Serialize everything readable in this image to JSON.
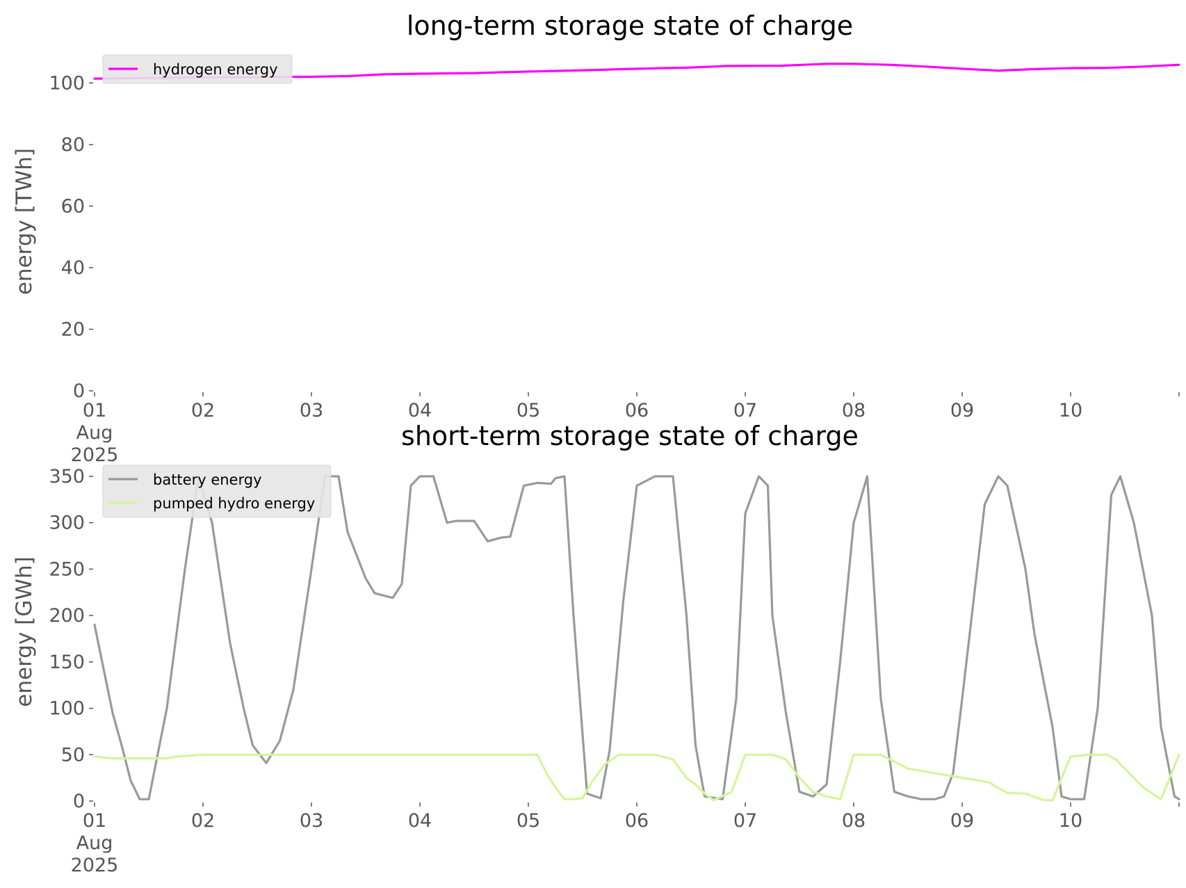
{
  "chart_data": [
    {
      "type": "line",
      "title": "long-term storage state of charge",
      "xlabel": "",
      "ylabel": "energy [TWh]",
      "xlim": [
        "2025-08-01",
        "2025-08-11"
      ],
      "ylim": [
        0,
        110
      ],
      "yticks": [
        0,
        20,
        40,
        60,
        80,
        100
      ],
      "xtick_labels": [
        "01\nAug\n2025",
        "02",
        "03",
        "04",
        "05",
        "06",
        "07",
        "08",
        "09",
        "10"
      ],
      "legend_position": "top-left",
      "grid": false,
      "series": [
        {
          "name": "hydrogen energy",
          "color": "#ff00ff",
          "x": [
            "2025-08-01T00:00",
            "2025-08-01T12:00",
            "2025-08-02T00:00",
            "2025-08-02T12:00",
            "2025-08-03T00:00",
            "2025-08-03T08:00",
            "2025-08-03T16:00",
            "2025-08-04T00:00",
            "2025-08-04T12:00",
            "2025-08-05T00:00",
            "2025-08-05T12:00",
            "2025-08-06T00:00",
            "2025-08-06T12:00",
            "2025-08-06T20:00",
            "2025-08-07T08:00",
            "2025-08-07T18:00",
            "2025-08-08T00:00",
            "2025-08-08T08:00",
            "2025-08-08T16:00",
            "2025-08-09T00:00",
            "2025-08-09T08:00",
            "2025-08-09T16:00",
            "2025-08-10T00:00",
            "2025-08-10T08:00",
            "2025-08-10T16:00",
            "2025-08-11T00:00"
          ],
          "values": [
            101.4,
            101.6,
            101.8,
            101.9,
            102.0,
            102.2,
            102.8,
            103.0,
            103.2,
            103.7,
            104.1,
            104.6,
            105.0,
            105.5,
            105.6,
            106.2,
            106.2,
            105.9,
            105.3,
            104.6,
            104.0,
            104.5,
            104.8,
            104.9,
            105.3,
            105.9
          ]
        }
      ]
    },
    {
      "type": "line",
      "title": "short-term storage state of charge",
      "xlabel": "",
      "ylabel": "energy [GWh]",
      "xlim": [
        "2025-08-01",
        "2025-08-11"
      ],
      "ylim": [
        0,
        365
      ],
      "yticks": [
        0,
        50,
        100,
        150,
        200,
        250,
        300,
        350
      ],
      "xtick_labels": [
        "01\nAug\n2025",
        "02",
        "03",
        "04",
        "05",
        "06",
        "07",
        "08",
        "09",
        "10"
      ],
      "legend_position": "top-left",
      "grid": false,
      "series": [
        {
          "name": "battery energy",
          "color": "#999999",
          "x": [
            "2025-08-01T00:00",
            "2025-08-01T04:00",
            "2025-08-01T06:00",
            "2025-08-01T08:00",
            "2025-08-01T10:00",
            "2025-08-01T12:00",
            "2025-08-01T16:00",
            "2025-08-01T20:00",
            "2025-08-01T23:00",
            "2025-08-02T02:00",
            "2025-08-02T06:00",
            "2025-08-02T09:00",
            "2025-08-02T11:00",
            "2025-08-02T14:00",
            "2025-08-02T17:00",
            "2025-08-02T20:00",
            "2025-08-03T00:00",
            "2025-08-03T03:00",
            "2025-08-03T06:00",
            "2025-08-03T08:00",
            "2025-08-03T12:00",
            "2025-08-03T14:00",
            "2025-08-03T18:00",
            "2025-08-03T20:00",
            "2025-08-03T22:00",
            "2025-08-04T00:00",
            "2025-08-04T03:00",
            "2025-08-04T06:00",
            "2025-08-04T08:00",
            "2025-08-04T12:00",
            "2025-08-04T15:00",
            "2025-08-04T18:00",
            "2025-08-04T20:00",
            "2025-08-04T23:00",
            "2025-08-05T02:00",
            "2025-08-05T05:00",
            "2025-08-05T06:00",
            "2025-08-05T08:00",
            "2025-08-05T10:00",
            "2025-08-05T13:00",
            "2025-08-05T16:00",
            "2025-08-05T18:00",
            "2025-08-05T21:00",
            "2025-08-06T00:00",
            "2025-08-06T04:00",
            "2025-08-06T06:00",
            "2025-08-06T08:00",
            "2025-08-06T11:00",
            "2025-08-06T13:00",
            "2025-08-06T15:00",
            "2025-08-06T19:00",
            "2025-08-06T22:00",
            "2025-08-07T00:00",
            "2025-08-07T03:00",
            "2025-08-07T05:00",
            "2025-08-07T06:00",
            "2025-08-07T09:00",
            "2025-08-07T12:00",
            "2025-08-07T15:00",
            "2025-08-07T18:00",
            "2025-08-07T21:00",
            "2025-08-08T00:00",
            "2025-08-08T03:00",
            "2025-08-08T06:00",
            "2025-08-08T09:00",
            "2025-08-08T12:00",
            "2025-08-08T15:00",
            "2025-08-08T18:00",
            "2025-08-08T20:00",
            "2025-08-08T22:00",
            "2025-08-09T00:00",
            "2025-08-09T05:00",
            "2025-08-09T08:00",
            "2025-08-09T10:00",
            "2025-08-09T14:00",
            "2025-08-09T16:00",
            "2025-08-09T20:00",
            "2025-08-09T22:00",
            "2025-08-10T00:00",
            "2025-08-10T03:00",
            "2025-08-10T06:00",
            "2025-08-10T09:00",
            "2025-08-10T11:00",
            "2025-08-10T14:00",
            "2025-08-10T18:00",
            "2025-08-10T20:00",
            "2025-08-10T23:00",
            "2025-08-11T00:00"
          ],
          "values": [
            190,
            95,
            60,
            22,
            2,
            2,
            100,
            250,
            350,
            300,
            170,
            100,
            60,
            41,
            65,
            120,
            250,
            350,
            350,
            290,
            240,
            224,
            219,
            234,
            340,
            350,
            350,
            300,
            302,
            302,
            280,
            284,
            285,
            340,
            343,
            342,
            348,
            350,
            200,
            8,
            3,
            55,
            215,
            340,
            350,
            350,
            350,
            200,
            60,
            5,
            2,
            110,
            310,
            350,
            340,
            200,
            95,
            10,
            5,
            18,
            150,
            300,
            350,
            110,
            10,
            5,
            2,
            2,
            5,
            30,
            110,
            320,
            350,
            340,
            250,
            180,
            80,
            5,
            2,
            2,
            100,
            330,
            350,
            300,
            200,
            80,
            5,
            2
          ]
        },
        {
          "name": "pumped hydro energy",
          "color": "#d4f59a",
          "x": [
            "2025-08-01T00:00",
            "2025-08-01T04:00",
            "2025-08-01T10:00",
            "2025-08-01T16:00",
            "2025-08-01T18:00",
            "2025-08-02T00:00",
            "2025-08-03T00:00",
            "2025-08-04T00:00",
            "2025-08-04T23:00",
            "2025-08-05T02:00",
            "2025-08-05T04:00",
            "2025-08-05T06:00",
            "2025-08-05T08:00",
            "2025-08-05T10:00",
            "2025-08-05T12:00",
            "2025-08-05T14:00",
            "2025-08-05T17:00",
            "2025-08-05T20:00",
            "2025-08-06T00:00",
            "2025-08-06T04:00",
            "2025-08-06T08:00",
            "2025-08-06T11:00",
            "2025-08-06T13:00",
            "2025-08-06T15:00",
            "2025-08-06T17:00",
            "2025-08-06T21:00",
            "2025-08-07T00:00",
            "2025-08-07T03:00",
            "2025-08-07T06:00",
            "2025-08-07T09:00",
            "2025-08-07T12:00",
            "2025-08-07T15:00",
            "2025-08-07T18:00",
            "2025-08-07T21:00",
            "2025-08-08T00:00",
            "2025-08-08T03:00",
            "2025-08-08T06:00",
            "2025-08-08T12:00",
            "2025-08-08T18:00",
            "2025-08-09T00:00",
            "2025-08-09T04:00",
            "2025-08-09T06:00",
            "2025-08-09T08:00",
            "2025-08-09T10:00",
            "2025-08-09T14:00",
            "2025-08-09T18:00",
            "2025-08-09T20:00",
            "2025-08-10T00:00",
            "2025-08-10T04:00",
            "2025-08-10T06:00",
            "2025-08-10T08:00",
            "2025-08-10T10:00",
            "2025-08-10T14:00",
            "2025-08-10T16:00",
            "2025-08-10T20:00",
            "2025-08-11T00:00"
          ],
          "values": [
            48,
            46,
            46,
            46,
            48,
            50,
            50,
            50,
            50,
            50,
            30,
            15,
            2,
            2,
            3,
            20,
            40,
            50,
            50,
            50,
            45,
            25,
            18,
            8,
            1,
            10,
            50,
            50,
            50,
            45,
            25,
            10,
            5,
            2,
            50,
            50,
            50,
            35,
            30,
            25,
            22,
            20,
            14,
            9,
            8,
            1,
            1,
            48,
            50,
            50,
            50,
            45,
            25,
            15,
            2,
            50
          ]
        }
      ]
    }
  ]
}
